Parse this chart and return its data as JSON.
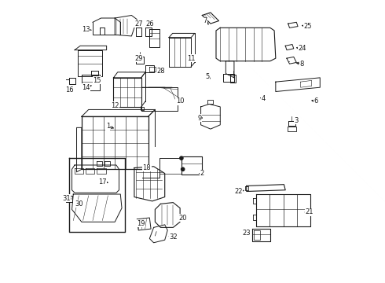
{
  "bg_color": "#ffffff",
  "line_color": "#1a1a1a",
  "figsize": [
    4.9,
    3.6
  ],
  "dpi": 100,
  "callouts": {
    "1": [
      0.195,
      0.445,
      0.225,
      0.455,
      "right"
    ],
    "2": [
      0.535,
      0.615,
      0.515,
      0.615,
      "right"
    ],
    "3": [
      0.875,
      0.425,
      0.855,
      0.43,
      "right"
    ],
    "4": [
      0.755,
      0.345,
      0.735,
      0.34,
      "right"
    ],
    "5": [
      0.555,
      0.265,
      0.565,
      0.275,
      "right"
    ],
    "6": [
      0.945,
      0.355,
      0.92,
      0.35,
      "right"
    ],
    "7": [
      0.545,
      0.065,
      0.565,
      0.085,
      "right"
    ],
    "8": [
      0.895,
      0.22,
      0.865,
      0.215,
      "right"
    ],
    "9": [
      0.525,
      0.415,
      0.545,
      0.415,
      "right"
    ],
    "10": [
      0.455,
      0.355,
      0.44,
      0.355,
      "right"
    ],
    "11": [
      0.495,
      0.2,
      0.485,
      0.215,
      "right"
    ],
    "12": [
      0.22,
      0.37,
      0.245,
      0.37,
      "right"
    ],
    "13": [
      0.115,
      0.095,
      0.145,
      0.1,
      "right"
    ],
    "14": [
      0.115,
      0.305,
      0.145,
      0.295,
      "right"
    ],
    "15": [
      0.155,
      0.28,
      0.165,
      0.27,
      "right"
    ],
    "16": [
      0.055,
      0.315,
      0.08,
      0.305,
      "right"
    ],
    "17": [
      0.175,
      0.645,
      0.205,
      0.65,
      "right"
    ],
    "18": [
      0.335,
      0.595,
      0.35,
      0.615,
      "right"
    ],
    "19": [
      0.315,
      0.795,
      0.325,
      0.8,
      "right"
    ],
    "20": [
      0.465,
      0.775,
      0.445,
      0.775,
      "right"
    ],
    "21": [
      0.92,
      0.755,
      0.895,
      0.755,
      "right"
    ],
    "22": [
      0.665,
      0.68,
      0.695,
      0.675,
      "right"
    ],
    "23": [
      0.695,
      0.83,
      0.72,
      0.825,
      "right"
    ],
    "24": [
      0.895,
      0.165,
      0.865,
      0.16,
      "right"
    ],
    "25": [
      0.915,
      0.085,
      0.885,
      0.08,
      "right"
    ],
    "26": [
      0.345,
      0.075,
      0.345,
      0.1,
      "right"
    ],
    "27": [
      0.305,
      0.075,
      0.31,
      0.095,
      "right"
    ],
    "28": [
      0.385,
      0.245,
      0.365,
      0.24,
      "right"
    ],
    "29": [
      0.305,
      0.2,
      0.315,
      0.215,
      "right"
    ],
    "30": [
      0.09,
      0.725,
      0.085,
      0.72,
      "right"
    ],
    "31": [
      0.045,
      0.705,
      0.055,
      0.715,
      "right"
    ],
    "32": [
      0.43,
      0.845,
      0.405,
      0.84,
      "right"
    ]
  }
}
